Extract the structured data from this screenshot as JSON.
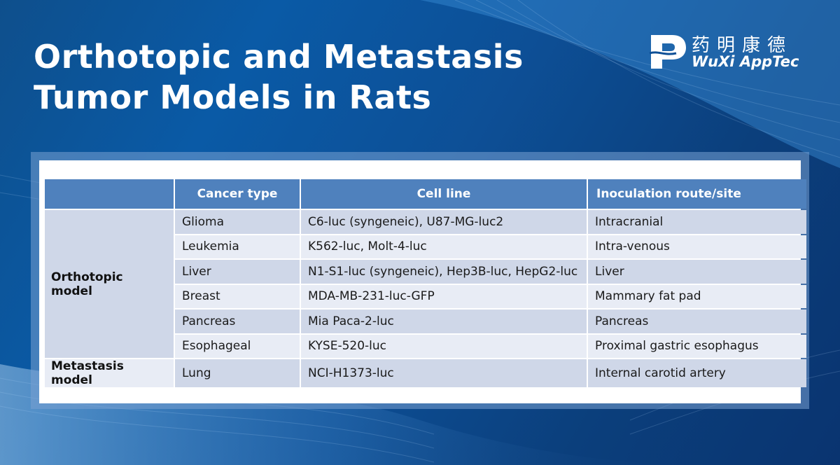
{
  "title": {
    "line1": "Orthotopic and Metastasis",
    "line2": "Tumor Models in Rats"
  },
  "logo": {
    "chinese": "药明康德",
    "english": "WuXi AppTec",
    "brand_color": "#ffffff"
  },
  "table": {
    "headers": [
      "",
      "Cancer type",
      "Cell line",
      "Inoculation route/site"
    ],
    "groups": [
      {
        "label": "Orthotopic model",
        "rows": [
          {
            "cancer_type": "Glioma",
            "cell_line": "C6-luc (syngeneic), U87-MG-luc2",
            "route": "Intracranial"
          },
          {
            "cancer_type": "Leukemia",
            "cell_line": "K562-luc, Molt-4-luc",
            "route": "Intra-venous"
          },
          {
            "cancer_type": "Liver",
            "cell_line": "N1-S1-luc (syngeneic), Hep3B-luc, HepG2-luc",
            "route": "Liver"
          },
          {
            "cancer_type": "Breast",
            "cell_line": "MDA-MB-231-luc-GFP",
            "route": "Mammary fat pad"
          },
          {
            "cancer_type": "Pancreas",
            "cell_line": "Mia Paca-2-luc",
            "route": "Pancreas"
          },
          {
            "cancer_type": "Esophageal",
            "cell_line": "KYSE-520-luc",
            "route": "Proximal gastric esophagus"
          }
        ]
      },
      {
        "label": "Metastasis model",
        "rows": [
          {
            "cancer_type": "Lung",
            "cell_line": "NCI-H1373-luc",
            "route": "Internal carotid artery"
          }
        ]
      }
    ],
    "colors": {
      "header_bg": "#4f81bd",
      "row_dark": "#cfd7e8",
      "row_light": "#e8ecf5"
    }
  }
}
